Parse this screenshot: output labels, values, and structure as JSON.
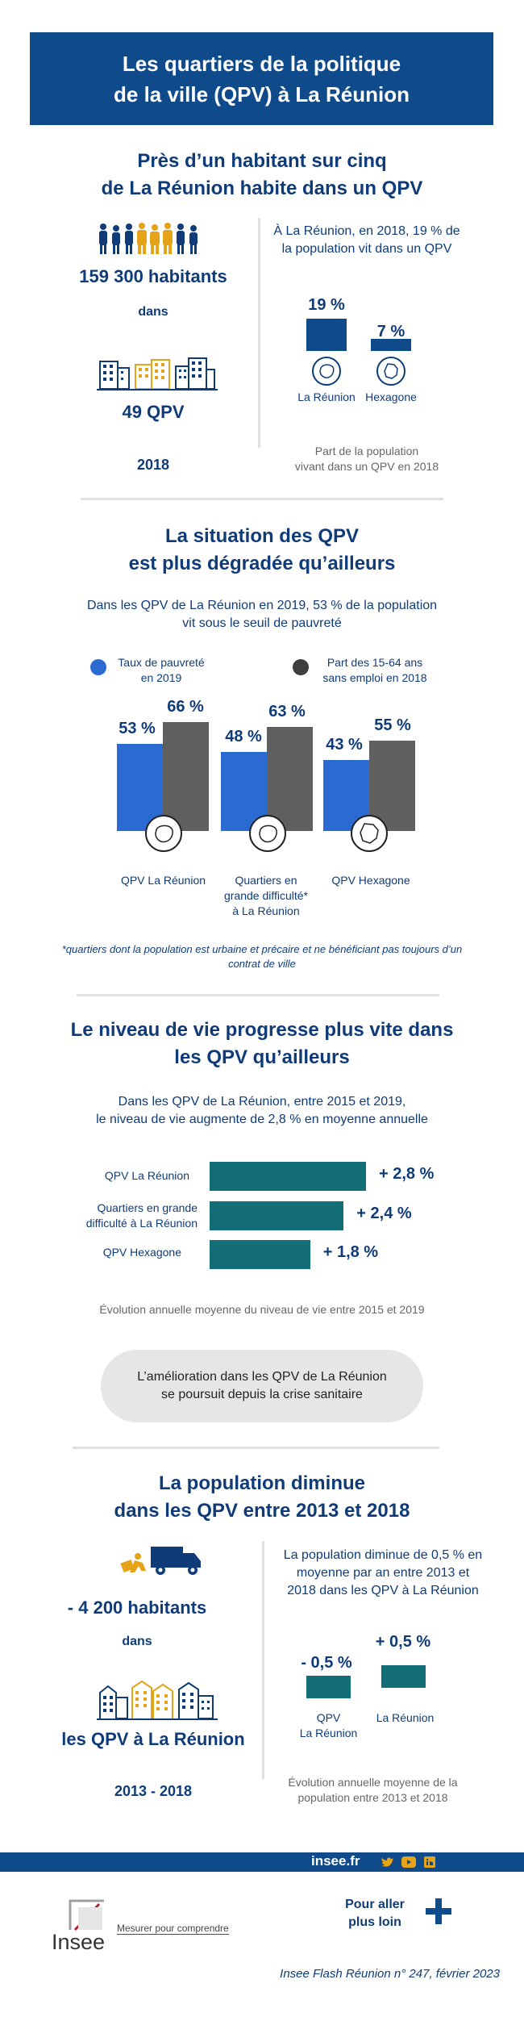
{
  "header": {
    "line1": "Les quartiers de la politique",
    "line2": "de la ville (QPV) à La Réunion"
  },
  "colors": {
    "navy": "#0f4a8a",
    "blue": "#2b6bd1",
    "grey": "#5f5f5f",
    "teal": "#146e78",
    "orange": "#e5a31a"
  },
  "s1": {
    "title1": "Près d’un habitant sur cinq",
    "title2": "de La Réunion habite dans un QPV",
    "habitants": "159 300 habitants",
    "dans": "dans",
    "qpv": "49 QPV",
    "year": "2018",
    "desc1": "À La Réunion, en 2018, 19 % de",
    "desc2": "la population vit dans un QPV",
    "caption1": "Part de la population",
    "caption2": "vivant dans un QPV en 2018"
  },
  "s2": {
    "title1": "La situation des QPV",
    "title2": "est plus dégradée qu’ailleurs",
    "desc1": "Dans les QPV de La Réunion en 2019, 53 % de la population",
    "desc2": "vit sous le seuil de pauvreté",
    "cat2_l1": "Quartiers en",
    "cat2_l2": "grande difficulté*",
    "cat2_l3": "à La Réunion",
    "footnote1": "*quartiers dont la population est urbaine et précaire et ne bénéficiant pas toujours d’un",
    "footnote2": "contrat de ville"
  },
  "s3": {
    "title1": "Le niveau de vie progresse plus vite dans",
    "title2": "les QPV qu’ailleurs",
    "desc1": "Dans les QPV de La Réunion, entre 2015 et 2019,",
    "desc2": "le niveau de vie augmente de 2,8 % en moyenne annuelle",
    "cat2_l1": "Quartiers en grande",
    "cat2_l2": "difficulté à La Réunion",
    "caption": "Évolution annuelle moyenne du niveau de vie entre 2015 et 2019",
    "note1": "L’amélioration dans les QPV de La Réunion",
    "note2": "se poursuit depuis la crise sanitaire"
  },
  "s4": {
    "title1": "La population diminue",
    "title2": "dans les QPV entre 2013 et 2018",
    "habitants": "- 4 200 habitants",
    "dans": "dans",
    "qpv": "les QPV à La Réunion",
    "years": "2013 - 2018",
    "desc1": "La population diminue de 0,5 % en",
    "desc2": "moyenne par an entre 2013 et",
    "desc3": "2018 dans les QPV à La Réunion",
    "cat1_l1": "QPV",
    "cat1_l2": "La Réunion",
    "caption1": "Évolution annuelle moyenne de la",
    "caption2": "population entre 2013 et 2018"
  },
  "footer": {
    "site": "insee.fr",
    "more1": "Pour aller",
    "more2": "plus loin",
    "logo": "Insee",
    "tagline": "Mesurer pour comprendre",
    "ref": "Insee Flash Réunion n° 247, février 2023"
  },
  "chart_data": [
    {
      "type": "bar",
      "title": "Part de la population vivant dans un QPV en 2018",
      "categories": [
        "La Réunion",
        "Hexagone"
      ],
      "values": [
        19,
        7
      ],
      "labels": [
        "19 %",
        "7 %"
      ],
      "ylim": [
        0,
        20
      ]
    },
    {
      "type": "bar",
      "title": "La situation des QPV est plus dégradée qu’ailleurs",
      "categories": [
        "QPV La Réunion",
        "Quartiers en grande difficulté* à La Réunion",
        "QPV Hexagone"
      ],
      "series": [
        {
          "name": "Taux de pauvreté en 2019",
          "values": [
            53,
            48,
            43
          ],
          "labels": [
            "53 %",
            "48 %",
            "43 %"
          ]
        },
        {
          "name": "Part des 15-64 ans sans emploi en 2018",
          "values": [
            66,
            63,
            55
          ],
          "labels": [
            "66 %",
            "63 %",
            "55 %"
          ]
        }
      ],
      "legend1": [
        "Taux de pauvreté",
        "en 2019"
      ],
      "legend2": [
        "Part des 15-64 ans",
        "sans emploi en 2018"
      ],
      "ylim": [
        0,
        70
      ]
    },
    {
      "type": "bar",
      "orientation": "horizontal",
      "title": "Évolution annuelle moyenne du niveau de vie entre 2015 et 2019",
      "categories": [
        "QPV La Réunion",
        "Quartiers en grande difficulté à La Réunion",
        "QPV Hexagone"
      ],
      "values": [
        2.8,
        2.4,
        1.8
      ],
      "labels": [
        "+ 2,8 %",
        "+ 2,4 %",
        "+ 1,8 %"
      ],
      "xlim": [
        0,
        3
      ]
    },
    {
      "type": "bar",
      "title": "Évolution annuelle moyenne de la population entre 2013 et 2018",
      "categories": [
        "QPV La Réunion",
        "La Réunion"
      ],
      "values": [
        -0.5,
        0.5
      ],
      "labels": [
        "- 0,5 %",
        "+ 0,5 %"
      ]
    }
  ]
}
